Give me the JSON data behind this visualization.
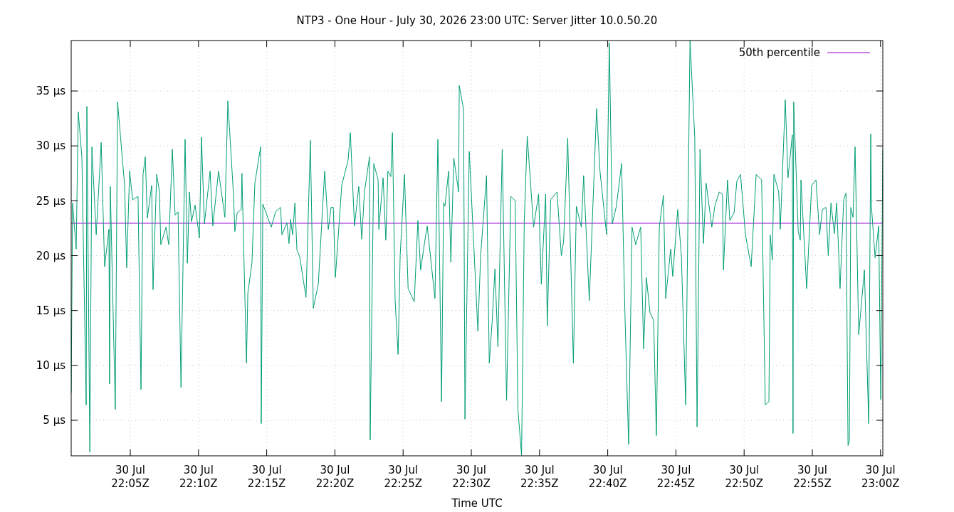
{
  "chart_data": {
    "type": "line",
    "title": "NTP3 - One Hour - July 30, 2026 23:00 UTC: Server Jitter 10.0.50.20",
    "xlabel": "Time UTC",
    "xlim": [
      "2026-07-30T22:00:40",
      "2026-07-30T23:00:10"
    ],
    "ylim": [
      1.76,
      39.6
    ],
    "xticks": [
      {
        "value": "2026-07-30T22:05",
        "label": "30 Jul\n22:05Z"
      },
      {
        "value": "2026-07-30T22:10",
        "label": "30 Jul\n22:10Z"
      },
      {
        "value": "2026-07-30T22:15",
        "label": "30 Jul\n22:15Z"
      },
      {
        "value": "2026-07-30T22:20",
        "label": "30 Jul\n22:20Z"
      },
      {
        "value": "2026-07-30T22:25",
        "label": "30 Jul\n22:25Z"
      },
      {
        "value": "2026-07-30T22:30",
        "label": "30 Jul\n22:30Z"
      },
      {
        "value": "2026-07-30T22:35",
        "label": "30 Jul\n22:35Z"
      },
      {
        "value": "2026-07-30T22:40",
        "label": "30 Jul\n22:40Z"
      },
      {
        "value": "2026-07-30T22:45",
        "label": "30 Jul\n22:45Z"
      },
      {
        "value": "2026-07-30T22:50",
        "label": "30 Jul\n22:50Z"
      },
      {
        "value": "2026-07-30T22:55",
        "label": "30 Jul\n22:55Z"
      },
      {
        "value": "2026-07-30T23:00",
        "label": "30 Jul\n23:00Z"
      }
    ],
    "yticks": [
      {
        "value": 5,
        "label": "5 µs"
      },
      {
        "value": 10,
        "label": "10 µs"
      },
      {
        "value": 15,
        "label": "15 µs"
      },
      {
        "value": 20,
        "label": "20 µs"
      },
      {
        "value": 25,
        "label": "25 µs"
      },
      {
        "value": 30,
        "label": "30 µs"
      },
      {
        "value": 35,
        "label": "35 µs"
      }
    ],
    "grid": true,
    "legend": "top right",
    "marker": "none",
    "line_style": "solid",
    "series": [
      {
        "name": "50th percentile",
        "color": "#9400d3",
        "x": [
          "2026-07-30T22:00:40",
          "2026-07-30T23:00:10"
        ],
        "values": [
          22.95,
          22.95
        ]
      },
      {
        "color": "#009e73",
        "x": [
          "2026-07-30T22:00:40",
          "2026-07-30T22:00:46",
          "2026-07-30T22:01:02",
          "2026-07-30T22:01:11",
          "2026-07-30T22:01:27",
          "2026-07-30T22:01:46",
          "2026-07-30T22:01:49",
          "2026-07-30T22:02:02",
          "2026-07-30T22:02:11",
          "2026-07-30T22:02:30",
          "2026-07-30T22:02:52",
          "2026-07-30T22:03:07",
          "2026-07-30T22:03:26",
          "2026-07-30T22:03:29",
          "2026-07-30T22:03:32",
          "2026-07-30T22:03:54",
          "2026-07-30T22:04:04",
          "2026-07-30T22:04:35",
          "2026-07-30T22:04:44",
          "2026-07-30T22:04:57",
          "2026-07-30T22:05:10",
          "2026-07-30T22:05:34",
          "2026-07-30T22:05:47",
          "2026-07-30T22:05:56",
          "2026-07-30T22:06:06",
          "2026-07-30T22:06:15",
          "2026-07-30T22:06:34",
          "2026-07-30T22:06:40",
          "2026-07-30T22:06:56",
          "2026-07-30T22:07:08",
          "2026-07-30T22:07:14",
          "2026-07-30T22:07:37",
          "2026-07-30T22:07:49",
          "2026-07-30T22:08:05",
          "2026-07-30T22:08:17",
          "2026-07-30T22:08:30",
          "2026-07-30T22:08:43",
          "2026-07-30T22:09:01",
          "2026-07-30T22:09:11",
          "2026-07-30T22:09:20",
          "2026-07-30T22:09:29",
          "2026-07-30T22:09:45",
          "2026-07-30T22:10:04",
          "2026-07-30T22:10:13",
          "2026-07-30T22:10:26",
          "2026-07-30T22:10:51",
          "2026-07-30T22:11:03",
          "2026-07-30T22:11:28",
          "2026-07-30T22:11:56",
          "2026-07-30T22:12:09",
          "2026-07-30T22:12:34",
          "2026-07-30T22:12:40",
          "2026-07-30T22:12:50",
          "2026-07-30T22:13:08",
          "2026-07-30T22:13:11",
          "2026-07-30T22:13:31",
          "2026-07-30T22:13:37",
          "2026-07-30T22:13:55",
          "2026-07-30T22:14:08",
          "2026-07-30T22:14:33",
          "2026-07-30T22:14:36",
          "2026-07-30T22:14:43",
          "2026-07-30T22:15:20",
          "2026-07-30T22:15:39",
          "2026-07-30T22:16:01",
          "2026-07-30T22:16:07",
          "2026-07-30T22:16:29",
          "2026-07-30T22:16:38",
          "2026-07-30T22:16:45",
          "2026-07-30T22:16:54",
          "2026-07-30T22:17:04",
          "2026-07-30T22:17:13",
          "2026-07-30T22:17:25",
          "2026-07-30T22:17:53",
          "2026-07-30T22:18:12",
          "2026-07-30T22:18:25",
          "2026-07-30T22:18:47",
          "2026-07-30T22:19:15",
          "2026-07-30T22:19:31",
          "2026-07-30T22:19:43",
          "2026-07-30T22:19:53",
          "2026-07-30T22:20:02",
          "2026-07-30T22:20:30",
          "2026-07-30T22:20:58",
          "2026-07-30T22:21:08",
          "2026-07-30T22:21:26",
          "2026-07-30T22:21:45",
          "2026-07-30T22:21:58",
          "2026-07-30T22:22:10",
          "2026-07-30T22:22:32",
          "2026-07-30T22:22:35",
          "2026-07-30T22:22:51",
          "2026-07-30T22:23:10",
          "2026-07-30T22:23:13",
          "2026-07-30T22:23:32",
          "2026-07-30T22:23:44",
          "2026-07-30T22:23:53",
          "2026-07-30T22:24:06",
          "2026-07-30T22:24:13",
          "2026-07-30T22:24:25",
          "2026-07-30T22:24:38",
          "2026-07-30T22:24:47",
          "2026-07-30T22:25:06",
          "2026-07-30T22:25:22",
          "2026-07-30T22:25:49",
          "2026-07-30T22:26:05",
          "2026-07-30T22:26:17",
          "2026-07-30T22:26:33",
          "2026-07-30T22:26:46",
          "2026-07-30T22:27:02",
          "2026-07-30T22:27:20",
          "2026-07-30T22:27:33",
          "2026-07-30T22:27:49",
          "2026-07-30T22:27:58",
          "2026-07-30T22:28:04",
          "2026-07-30T22:28:20",
          "2026-07-30T22:28:30",
          "2026-07-30T22:28:43",
          "2026-07-30T22:29:04",
          "2026-07-30T22:29:07",
          "2026-07-30T22:29:26",
          "2026-07-30T22:29:32",
          "2026-07-30T22:29:51",
          "2026-07-30T22:30:16",
          "2026-07-30T22:30:29",
          "2026-07-30T22:30:41",
          "2026-07-30T22:31:07",
          "2026-07-30T22:31:19",
          "2026-07-30T22:31:32",
          "2026-07-30T22:31:44",
          "2026-07-30T22:31:57",
          "2026-07-30T22:32:16",
          "2026-07-30T22:32:35",
          "2026-07-30T22:32:54",
          "2026-07-30T22:33:13",
          "2026-07-30T22:33:25",
          "2026-07-30T22:33:41",
          "2026-07-30T22:33:53",
          "2026-07-30T22:34:06",
          "2026-07-30T22:34:34",
          "2026-07-30T22:34:56",
          "2026-07-30T22:35:08",
          "2026-07-30T22:35:27",
          "2026-07-30T22:35:34",
          "2026-07-30T22:35:49",
          "2026-07-30T22:36:17",
          "2026-07-30T22:36:36",
          "2026-07-30T22:36:46",
          "2026-07-30T22:37:04",
          "2026-07-30T22:37:29",
          "2026-07-30T22:37:42",
          "2026-07-30T22:38:04",
          "2026-07-30T22:38:14",
          "2026-07-30T22:38:39",
          "2026-07-30T22:39:11",
          "2026-07-30T22:39:26",
          "2026-07-30T22:39:55",
          "2026-07-30T22:40:07",
          "2026-07-30T22:40:20",
          "2026-07-30T22:40:38",
          "2026-07-30T22:41:01",
          "2026-07-30T22:41:16",
          "2026-07-30T22:41:32",
          "2026-07-30T22:41:47",
          "2026-07-30T22:42:03",
          "2026-07-30T22:42:25",
          "2026-07-30T22:42:38",
          "2026-07-30T22:42:50",
          "2026-07-30T22:43:06",
          "2026-07-30T22:43:22",
          "2026-07-30T22:43:34",
          "2026-07-30T22:43:47",
          "2026-07-30T22:44:05",
          "2026-07-30T22:44:15",
          "2026-07-30T22:44:37",
          "2026-07-30T22:44:46",
          "2026-07-30T22:45:08",
          "2026-07-30T22:45:24",
          "2026-07-30T22:45:43",
          "2026-07-30T22:46:02",
          "2026-07-30T22:46:23",
          "2026-07-30T22:46:33",
          "2026-07-30T22:46:46",
          "2026-07-30T22:47:01",
          "2026-07-30T22:47:13",
          "2026-07-30T22:47:38",
          "2026-07-30T22:47:51",
          "2026-07-30T22:48:10",
          "2026-07-30T22:48:25",
          "2026-07-30T22:48:29",
          "2026-07-30T22:48:47",
          "2026-07-30T22:48:57",
          "2026-07-30T22:49:16",
          "2026-07-30T22:49:28",
          "2026-07-30T22:49:44",
          "2026-07-30T22:50:06",
          "2026-07-30T22:50:31",
          "2026-07-30T22:50:53",
          "2026-07-30T22:51:17",
          "2026-07-30T22:51:33",
          "2026-07-30T22:51:49",
          "2026-07-30T22:51:55",
          "2026-07-30T22:52:04",
          "2026-07-30T22:52:11",
          "2026-07-30T22:52:32",
          "2026-07-30T22:52:39",
          "2026-07-30T22:53:01",
          "2026-07-30T22:53:13",
          "2026-07-30T22:53:32",
          "2026-07-30T22:53:35",
          "2026-07-30T22:53:38",
          "2026-07-30T22:53:58",
          "2026-07-30T22:54:07",
          "2026-07-30T22:54:10",
          "2026-07-30T22:54:35",
          "2026-07-30T22:54:57",
          "2026-07-30T22:55:16",
          "2026-07-30T22:55:32",
          "2026-07-30T22:55:44",
          "2026-07-30T22:56:00",
          "2026-07-30T22:56:10",
          "2026-07-30T22:56:22",
          "2026-07-30T22:56:37",
          "2026-07-30T22:56:47",
          "2026-07-30T22:57:02",
          "2026-07-30T22:57:18",
          "2026-07-30T22:57:28",
          "2026-07-30T22:57:37",
          "2026-07-30T22:57:43",
          "2026-07-30T22:57:49",
          "2026-07-30T22:57:59",
          "2026-07-30T22:58:08",
          "2026-07-30T22:58:24",
          "2026-07-30T22:58:49",
          "2026-07-30T22:59:08",
          "2026-07-30T22:59:17",
          "2026-07-30T22:59:20",
          "2026-07-30T22:59:36",
          "2026-07-30T22:59:52",
          "2026-07-30T23:00:01",
          "2026-07-30T23:00:10"
        ],
        "values": [
          7.5,
          24.8,
          20.6,
          33.1,
          29.0,
          6.4,
          33.6,
          2.1,
          29.9,
          21.9,
          30.3,
          19.0,
          22.4,
          8.3,
          26.3,
          6.0,
          34.0,
          26.4,
          18.9,
          27.7,
          25.1,
          25.4,
          7.8,
          27.4,
          29.0,
          23.4,
          26.4,
          16.9,
          27.4,
          25.9,
          21.0,
          22.6,
          21.0,
          29.7,
          23.7,
          24.0,
          8.0,
          30.6,
          19.3,
          25.8,
          23.1,
          24.6,
          21.6,
          30.8,
          22.9,
          27.7,
          22.7,
          27.7,
          23.5,
          34.1,
          25.5,
          22.2,
          23.9,
          24.2,
          27.5,
          10.2,
          16.6,
          19.3,
          26.6,
          29.9,
          4.7,
          24.7,
          22.6,
          24.0,
          24.4,
          21.9,
          23.0,
          21.1,
          23.3,
          21.9,
          24.8,
          20.5,
          19.9,
          16.2,
          30.5,
          15.2,
          17.4,
          27.7,
          22.4,
          24.4,
          24.4,
          18.0,
          26.4,
          28.7,
          31.2,
          22.7,
          26.3,
          21.5,
          25.8,
          29.0,
          3.2,
          28.4,
          26.9,
          22.4,
          27.1,
          21.4,
          27.7,
          27.2,
          31.2,
          15.9,
          11.0,
          20.0,
          27.4,
          17.0,
          15.8,
          23.2,
          18.7,
          21.0,
          22.7,
          19.6,
          16.1,
          30.6,
          6.7,
          24.8,
          24.5,
          27.7,
          19.4,
          28.9,
          25.8,
          35.5,
          33.3,
          5.1,
          29.5,
          18.7,
          13.1,
          20.0,
          27.3,
          10.2,
          14.1,
          18.8,
          11.7,
          29.7,
          6.8,
          25.4,
          25.0,
          6.0,
          1.8,
          23.2,
          30.9,
          22.6,
          25.6,
          17.4,
          25.6,
          13.6,
          25.1,
          25.8,
          20.0,
          21.3,
          30.7,
          10.2,
          24.5,
          22.6,
          27.3,
          15.9,
          33.4,
          27.7,
          21.9,
          39.4,
          22.9,
          24.5,
          28.4,
          14.5,
          2.8,
          22.6,
          21.0,
          22.6,
          11.5,
          18.0,
          14.8,
          14.1,
          3.6,
          22.6,
          25.5,
          16.1,
          20.6,
          18.1,
          24.2,
          20.0,
          6.4,
          39.6,
          30.7,
          4.4,
          29.7,
          21.1,
          26.6,
          22.6,
          24.5,
          25.8,
          25.6,
          18.7,
          26.9,
          23.2,
          23.9,
          26.8,
          27.4,
          21.9,
          19.0,
          27.4,
          26.9,
          6.4,
          6.7,
          21.9,
          19.6,
          27.4,
          25.8,
          22.4,
          34.2,
          27.1,
          31.0,
          3.8,
          34.0,
          22.2,
          21.4,
          26.9,
          17.0,
          26.4,
          26.9,
          21.9,
          24.2,
          24.4,
          20.0,
          24.8,
          22.0,
          24.8,
          17.0,
          25.1,
          25.7,
          2.7,
          3.1,
          24.4,
          23.5,
          29.9,
          12.8,
          18.7,
          4.7,
          31.1,
          24.5,
          19.8,
          22.7,
          6.9,
          29.7
        ]
      }
    ]
  }
}
